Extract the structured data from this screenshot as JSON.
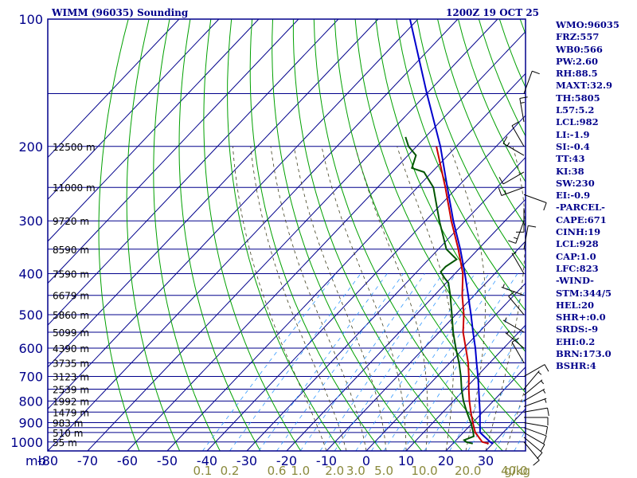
{
  "header": {
    "station_title": "WIMM (96035) Sounding",
    "valid_time": "1200Z 19 OCT 25"
  },
  "indices": [
    "WMO:96035",
    "FRZ:557",
    "WB0:566",
    "PW:2.60",
    "RH:88.5",
    "MAXT:32.9",
    "TH:5805",
    "L57:5.2",
    "LCL:982",
    "LI:-1.9",
    "SI:-0.4",
    "TT:43",
    "KI:38",
    "SW:230",
    "EI:-0.9",
    "-PARCEL-",
    "CAPE:671",
    "CINH:19",
    "LCL:928",
    "CAP:1.0",
    "LFC:823",
    "-WIND-",
    "STM:344/5",
    "HEL:20",
    "SHR+:0.0",
    "SRDS:-9",
    "EHI:0.2",
    "BRN:173.0",
    "BSHR:4"
  ],
  "colors": {
    "frame": "#00008b",
    "grid": "#00008b",
    "dry_adiabat": "#00a000",
    "moist_adiabat": "#404020",
    "mixing_ratio": "#3399ff",
    "temperature": "#cc0000",
    "dewpoint": "#005500",
    "parcel": "#0000cc",
    "wind_barb": "#000000",
    "mixing_label": "#8a8a3c"
  },
  "chart_data": {
    "type": "skew-t",
    "pressure_axis_unit": "mb",
    "pressure_ticks": [
      "100",
      "200",
      "300",
      "400",
      "500",
      "600",
      "700",
      "800",
      "900",
      "1000"
    ],
    "temperature_axis_unit": "°C",
    "temperature_ticks": [
      "-80",
      "-70",
      "-60",
      "-50",
      "-40",
      "-30",
      "-20",
      "-10",
      "0",
      "10",
      "20",
      "30"
    ],
    "temperature_range": [
      -80,
      40
    ],
    "pressure_range": [
      1050,
      100
    ],
    "isobars_mb": [
      150,
      200,
      250,
      300,
      350,
      400,
      450,
      500,
      550,
      600,
      650,
      700,
      750,
      800,
      850,
      900,
      925,
      950,
      1000
    ],
    "height_labels": [
      {
        "p": 200,
        "text": "12500 m"
      },
      {
        "p": 250,
        "text": "11000 m"
      },
      {
        "p": 300,
        "text": "9720 m"
      },
      {
        "p": 350,
        "text": "8590 m"
      },
      {
        "p": 400,
        "text": "7590 m"
      },
      {
        "p": 450,
        "text": "6679 m"
      },
      {
        "p": 500,
        "text": "5860 m"
      },
      {
        "p": 550,
        "text": "5099 m"
      },
      {
        "p": 600,
        "text": "4390 m"
      },
      {
        "p": 650,
        "text": "3735 m"
      },
      {
        "p": 700,
        "text": "3123 m"
      },
      {
        "p": 750,
        "text": "2539 m"
      },
      {
        "p": 800,
        "text": "1992 m"
      },
      {
        "p": 850,
        "text": "1479 m"
      },
      {
        "p": 900,
        "text": "983 m"
      },
      {
        "p": 950,
        "text": "510 m"
      },
      {
        "p": 1000,
        "text": "55 m"
      }
    ],
    "mixing_ratio_labels": [
      "0.1",
      "0.2",
      "0.6",
      "1.0",
      "2.0",
      "3.0",
      "5.0",
      "10.0",
      "20.0",
      "40.0"
    ],
    "mixing_ratio_unit": "g/kg",
    "series": [
      {
        "kind": "parcel",
        "points": [
          [
            1009,
            30
          ],
          [
            1000,
            29
          ],
          [
            950,
            24.2
          ],
          [
            900,
            21.8
          ],
          [
            850,
            19.3
          ],
          [
            800,
            16.5
          ],
          [
            750,
            13.5
          ],
          [
            700,
            10.3
          ],
          [
            650,
            6.7
          ],
          [
            600,
            2.9
          ],
          [
            550,
            -1.5
          ],
          [
            500,
            -6.2
          ],
          [
            450,
            -11.5
          ],
          [
            400,
            -17.5
          ],
          [
            350,
            -24.5
          ],
          [
            300,
            -33
          ],
          [
            250,
            -42.5
          ],
          [
            200,
            -54
          ],
          [
            150,
            -70
          ],
          [
            100,
            -92
          ]
        ]
      },
      {
        "kind": "temperature",
        "points": [
          [
            1009,
            29
          ],
          [
            1000,
            27
          ],
          [
            950,
            23
          ],
          [
            925,
            21.5
          ],
          [
            900,
            20
          ],
          [
            850,
            17
          ],
          [
            800,
            14
          ],
          [
            750,
            11
          ],
          [
            700,
            8
          ],
          [
            650,
            4.6
          ],
          [
            600,
            0.5
          ],
          [
            550,
            -4
          ],
          [
            500,
            -8
          ],
          [
            450,
            -13
          ],
          [
            400,
            -18
          ],
          [
            350,
            -25
          ],
          [
            300,
            -33.5
          ],
          [
            250,
            -43
          ],
          [
            200,
            -55
          ]
        ]
      },
      {
        "kind": "dewpoint",
        "points": [
          [
            1009,
            25
          ],
          [
            1000,
            23
          ],
          [
            990,
            22
          ],
          [
            970,
            23.5
          ],
          [
            950,
            22.5
          ],
          [
            900,
            19.5
          ],
          [
            850,
            16
          ],
          [
            800,
            12.5
          ],
          [
            750,
            9.2
          ],
          [
            700,
            6
          ],
          [
            650,
            2.3
          ],
          [
            600,
            -2
          ],
          [
            550,
            -6.5
          ],
          [
            500,
            -11
          ],
          [
            450,
            -16
          ],
          [
            420,
            -19.5
          ],
          [
            410,
            -21.5
          ],
          [
            396,
            -24
          ],
          [
            385,
            -24
          ],
          [
            370,
            -23
          ],
          [
            350,
            -28
          ],
          [
            300,
            -36.5
          ],
          [
            250,
            -46
          ],
          [
            230,
            -52
          ],
          [
            225,
            -56
          ],
          [
            210,
            -58
          ],
          [
            200,
            -62
          ],
          [
            190,
            -65
          ]
        ]
      }
    ],
    "wind_barbs": [
      {
        "p": 1000,
        "dir": 140,
        "spd": 10
      },
      {
        "p": 975,
        "dir": 130,
        "spd": 10
      },
      {
        "p": 950,
        "dir": 120,
        "spd": 10
      },
      {
        "p": 925,
        "dir": 110,
        "spd": 10
      },
      {
        "p": 900,
        "dir": 100,
        "spd": 10
      },
      {
        "p": 875,
        "dir": 90,
        "spd": 10
      },
      {
        "p": 850,
        "dir": 80,
        "spd": 10
      },
      {
        "p": 825,
        "dir": 70,
        "spd": 5
      },
      {
        "p": 800,
        "dir": 60,
        "spd": 5
      },
      {
        "p": 775,
        "dir": 50,
        "spd": 5
      },
      {
        "p": 750,
        "dir": 40,
        "spd": 5
      },
      {
        "p": 700,
        "dir": 60,
        "spd": 10
      },
      {
        "p": 650,
        "dir": 330,
        "spd": 10
      },
      {
        "p": 600,
        "dir": 310,
        "spd": 5
      },
      {
        "p": 550,
        "dir": 300,
        "spd": 5
      },
      {
        "p": 500,
        "dir": 320,
        "spd": 10
      },
      {
        "p": 450,
        "dir": 290,
        "spd": 5
      },
      {
        "p": 400,
        "dir": 330,
        "spd": 5
      },
      {
        "p": 350,
        "dir": 10,
        "spd": 10
      },
      {
        "p": 300,
        "dir": 200,
        "spd": 15
      },
      {
        "p": 280,
        "dir": 180,
        "spd": 10
      },
      {
        "p": 260,
        "dir": 110,
        "spd": 10
      },
      {
        "p": 250,
        "dir": 250,
        "spd": 15
      },
      {
        "p": 230,
        "dir": 240,
        "spd": 10
      },
      {
        "p": 210,
        "dir": 300,
        "spd": 15
      },
      {
        "p": 200,
        "dir": 330,
        "spd": 10
      },
      {
        "p": 175,
        "dir": 350,
        "spd": 15
      },
      {
        "p": 150,
        "dir": 20,
        "spd": 10
      }
    ]
  }
}
